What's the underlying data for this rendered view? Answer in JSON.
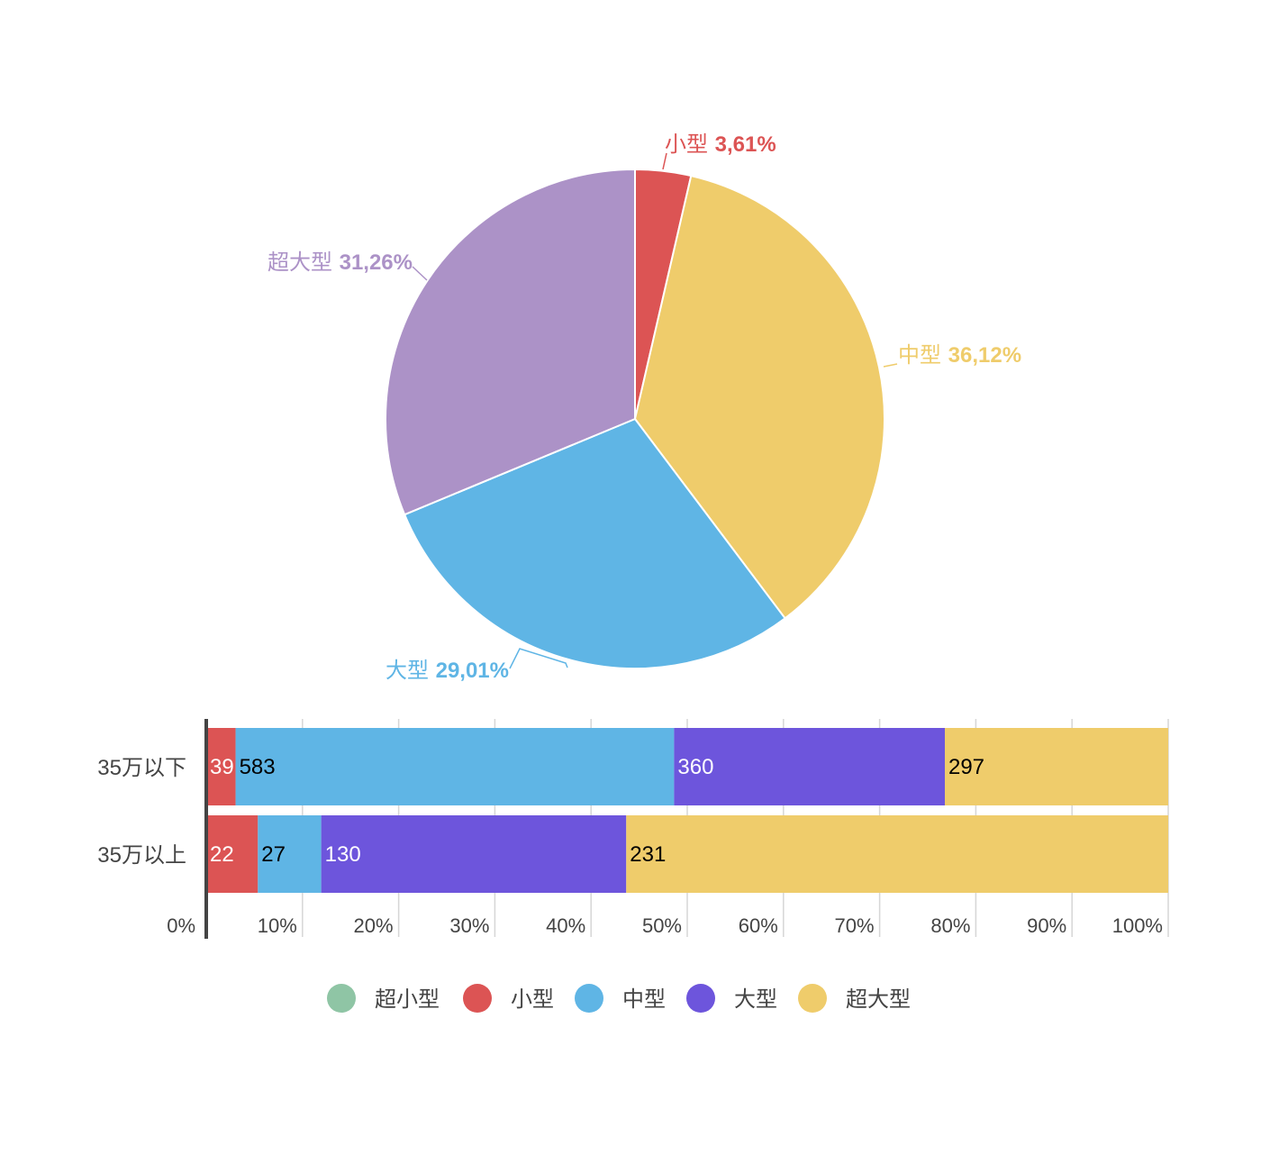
{
  "chart_data": [
    {
      "type": "pie",
      "slices": [
        {
          "name": "小型",
          "value": 3.61,
          "label": "3,61%",
          "color": "#dc5454"
        },
        {
          "name": "中型",
          "value": 36.12,
          "label": "36,12%",
          "color": "#efcc6b"
        },
        {
          "name": "大型",
          "value": 29.01,
          "label": "29,01%",
          "color": "#5fb5e5"
        },
        {
          "name": "超大型",
          "value": 31.26,
          "label": "31,26%",
          "color": "#ac92c7"
        }
      ]
    },
    {
      "type": "bar",
      "orientation": "horizontal",
      "stacked": "percent",
      "categories": [
        "35万以下",
        "35万以上"
      ],
      "series": [
        {
          "name": "超小型",
          "values": [
            0,
            0
          ],
          "color": "#8fc5a5",
          "label_color": "#000000"
        },
        {
          "name": "小型",
          "values": [
            39,
            22
          ],
          "color": "#dc5454",
          "label_color": "#ffffff"
        },
        {
          "name": "中型",
          "values": [
            583,
            27
          ],
          "color": "#5fb5e5",
          "label_color": "#000000"
        },
        {
          "name": "大型",
          "values": [
            360,
            130
          ],
          "color": "#6d55dc",
          "label_color": "#ffffff"
        },
        {
          "name": "超大型",
          "values": [
            297,
            231
          ],
          "color": "#efcc6b",
          "label_color": "#000000"
        }
      ],
      "xticks": [
        "0%",
        "10%",
        "20%",
        "30%",
        "40%",
        "50%",
        "60%",
        "70%",
        "80%",
        "90%",
        "100%"
      ],
      "xlim": [
        0,
        100
      ],
      "grid": true,
      "legend_position": "bottom"
    }
  ]
}
